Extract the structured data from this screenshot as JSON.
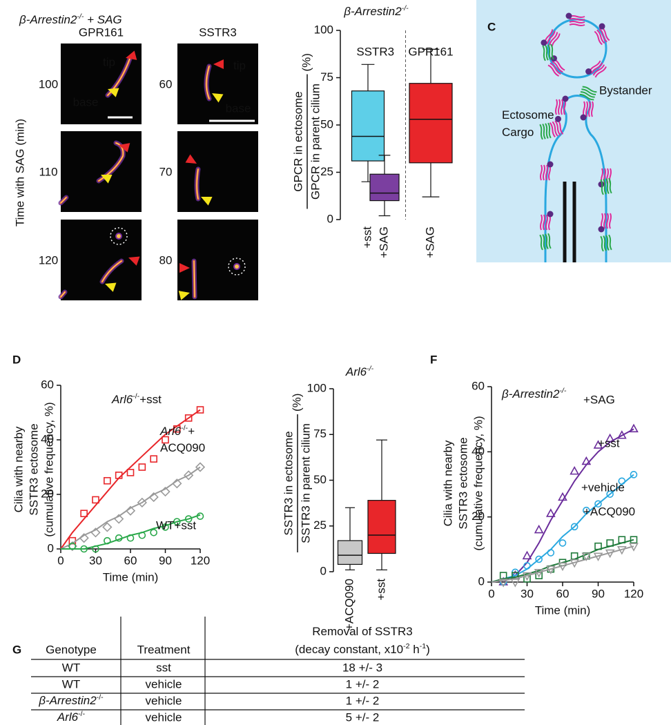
{
  "panel_labels": {
    "c": "C",
    "d": "D",
    "f": "F",
    "g": "G"
  },
  "figure_b": {
    "title": [
      "β-Arrestin2",
      {
        "sup": "-/-"
      },
      " + SAG"
    ],
    "y_label": "Time with SAG (min)",
    "columns": [
      {
        "label": "GPR161",
        "times": [
          "100",
          "110",
          "120"
        ]
      },
      {
        "label": "SSTR3",
        "times": [
          "60",
          "70",
          "80"
        ]
      }
    ],
    "tip": "tip",
    "base": "base"
  },
  "diagram_c": {
    "bystander": "Bystander",
    "cargo": [
      "Ectosome",
      {
        "br": "Cargo"
      }
    ]
  },
  "chart_data": [
    {
      "type": "box",
      "title": [
        "β-Arrestin2",
        {
          "sup": "-/-"
        }
      ],
      "y_label": {
        "numerator": "GPCR in ectosome",
        "denominator": "GPCR in parent cilium",
        "unit": "(%)"
      },
      "groups": [
        {
          "label": "SSTR3",
          "span": 2
        },
        {
          "label": "GPR161",
          "span": 1
        }
      ],
      "categories": [
        "+sst",
        "+SAG",
        "+SAG"
      ],
      "boxes": [
        {
          "color": "#5ecfe8",
          "whisker_low": 20,
          "q1": 31,
          "median": 44,
          "q3": 68,
          "whisker_high": 82
        },
        {
          "color": "#7b3fa0",
          "whisker_low": 2,
          "q1": 10,
          "median": 14,
          "q3": 24,
          "whisker_high": 34
        },
        {
          "color": "#e8262a",
          "whisker_low": 12,
          "q1": 30,
          "median": 53,
          "q3": 72,
          "whisker_high": 90
        }
      ],
      "ylim": [
        0,
        100
      ],
      "yticks": [
        0,
        25,
        50,
        75,
        100
      ]
    },
    {
      "type": "line",
      "y_label": [
        "Cilia with nearby",
        "SSTR3 ectosome",
        "(cumulative frequency, %)"
      ],
      "x_label": "Time (min)",
      "xlim": [
        0,
        120
      ],
      "xticks": [
        0,
        30,
        60,
        90,
        120
      ],
      "ylim": [
        0,
        60
      ],
      "yticks": [
        0,
        20,
        40,
        60
      ],
      "x": [
        10,
        20,
        30,
        40,
        50,
        60,
        70,
        80,
        90,
        100,
        110,
        120
      ],
      "fit_x": [
        0,
        10,
        20,
        30,
        40,
        50,
        60,
        70,
        80,
        90,
        100,
        110,
        120
      ],
      "series": [
        {
          "name": [
            {
              "i": "Arl6"
            },
            {
              "sup": "-/-"
            },
            "+sst"
          ],
          "color": "#e8262a",
          "marker": "square",
          "values": [
            3,
            13,
            18,
            25,
            27,
            28,
            30,
            33,
            40,
            44,
            48,
            51
          ],
          "fit": [
            0,
            6,
            11,
            16,
            21,
            26,
            30,
            34,
            38,
            42,
            45,
            48,
            51
          ]
        },
        {
          "name": [
            {
              "i": "Arl6"
            },
            {
              "sup": "-/-"
            },
            "+",
            {
              "br": "ACQ090"
            }
          ],
          "color": "#9a9a9a",
          "marker": "diamond",
          "values": [
            1,
            4,
            6,
            8,
            11,
            14,
            17,
            19,
            21,
            24,
            27,
            30
          ],
          "fit": [
            0,
            2,
            5,
            7,
            10,
            12,
            15,
            17,
            20,
            22,
            25,
            27,
            30
          ]
        },
        {
          "name": "WT+sst",
          "color": "#2aa84a",
          "marker": "circle",
          "values": [
            1,
            0,
            0,
            3,
            4,
            4,
            5,
            6,
            8,
            10,
            11,
            12
          ],
          "fit": [
            0,
            0,
            0,
            1,
            2,
            3.5,
            5,
            6,
            7.5,
            8.5,
            10,
            11,
            12.5
          ]
        }
      ]
    },
    {
      "type": "box",
      "title": [
        {
          "i": "Arl6"
        },
        {
          "sup": "-/-"
        }
      ],
      "y_label": {
        "numerator": "SSTR3 in ectosome",
        "denominator": "SSTR3 in parent cilium",
        "unit": "(%)"
      },
      "categories": [
        "+ACQ090",
        "+sst"
      ],
      "boxes": [
        {
          "color": "#c8c8c8",
          "whisker_low": 1,
          "q1": 4,
          "median": 9,
          "q3": 17,
          "whisker_high": 35
        },
        {
          "color": "#e8262a",
          "whisker_low": 1,
          "q1": 10,
          "median": 20,
          "q3": 39,
          "whisker_high": 72
        }
      ],
      "ylim": [
        0,
        100
      ],
      "yticks": [
        0,
        25,
        50,
        75,
        100
      ]
    },
    {
      "type": "line",
      "title": [
        "β-Arrestin2",
        {
          "sup": "-/-"
        }
      ],
      "y_label": [
        "Cilia with nearby",
        "SSTR3 ectosome",
        "(cumulative frequency, %)"
      ],
      "x_label": "Time (min)",
      "xlim": [
        0,
        120
      ],
      "xticks": [
        0,
        30,
        60,
        90,
        120
      ],
      "ylim": [
        0,
        60
      ],
      "yticks": [
        0,
        20,
        40,
        60
      ],
      "x": [
        10,
        20,
        30,
        40,
        50,
        60,
        70,
        80,
        90,
        100,
        110,
        120
      ],
      "fit_x": [
        0,
        10,
        20,
        30,
        40,
        50,
        60,
        70,
        80,
        90,
        100,
        110,
        120
      ],
      "series": [
        {
          "name": "+SAG",
          "color": "#6a2c9b",
          "marker": "triangle",
          "values": [
            0,
            2,
            8,
            16,
            21,
            26,
            34,
            37,
            42,
            44,
            45,
            47
          ],
          "fit": [
            0,
            0.5,
            2,
            6,
            12,
            19,
            25,
            31,
            36,
            40,
            43,
            45,
            47
          ]
        },
        {
          "name": "+sst",
          "color": "#29a8e0",
          "marker": "circle",
          "values": [
            0,
            3,
            5,
            7,
            9,
            12,
            17,
            22,
            24,
            27,
            31,
            33
          ],
          "fit": [
            0,
            1,
            2,
            4,
            7,
            10,
            14,
            17,
            21,
            24,
            27,
            30,
            33
          ]
        },
        {
          "name": "+vehicle",
          "color": "#1f7a3a",
          "marker": "square",
          "values": [
            2,
            2,
            1,
            2,
            4,
            6,
            8,
            8,
            11,
            12,
            13,
            13
          ],
          "fit": [
            0,
            1,
            1.5,
            2.5,
            3.5,
            5,
            6,
            7,
            8.5,
            10,
            11,
            12,
            13
          ]
        },
        {
          "name": "+ACQ090",
          "color": "#9a9a9a",
          "marker": "triangle-down",
          "values": [
            0,
            0,
            2,
            3,
            4,
            5,
            6,
            8,
            8,
            9,
            10,
            11
          ],
          "fit": [
            0,
            0.5,
            1,
            2,
            3,
            4,
            5,
            6,
            7,
            8,
            9,
            10,
            11
          ]
        }
      ]
    }
  ],
  "table_g": {
    "columns": [
      "Genotype",
      "Treatment",
      [
        "Removal of SSTR3",
        {
          "br": "(decay constant, x10"
        },
        {
          "sup": "-2"
        },
        " h",
        {
          "sup": "-1"
        },
        ")"
      ]
    ],
    "rows": [
      [
        "WT",
        "sst",
        "18 +/- 3"
      ],
      [
        "WT",
        "vehicle",
        "1 +/- 2"
      ],
      [
        [
          {
            "i": "β-Arrestin2"
          },
          {
            "sup": "-/-"
          }
        ],
        "vehicle",
        "1 +/- 2"
      ],
      [
        [
          {
            "i": "Arl6"
          },
          {
            "sup": "-/-"
          }
        ],
        "vehicle",
        "5 +/- 2"
      ]
    ]
  }
}
